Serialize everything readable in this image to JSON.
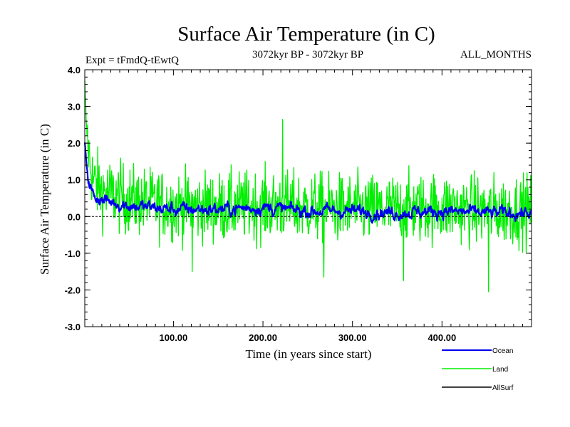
{
  "chart_data": {
    "type": "line",
    "title": "Surface Air Temperature (in C)",
    "subtitle_left": "Expt = tFmdQ-tEwtQ",
    "subtitle_center": "3072kyr BP - 3072kyr BP",
    "subtitle_right": "ALL_MONTHS",
    "xlabel": "Time (in years since start)",
    "ylabel": "Surface Air Temperature (in C)",
    "xlim": [
      1,
      500
    ],
    "ylim": [
      -3.0,
      4.0
    ],
    "xticks": [
      100,
      200,
      300,
      400
    ],
    "xtick_labels": [
      "100.00",
      "200.00",
      "300.00",
      "400.00"
    ],
    "yticks": [
      -3.0,
      -2.0,
      -1.0,
      0.0,
      1.0,
      2.0,
      3.0,
      4.0
    ],
    "ytick_labels": [
      "-3.0",
      "-2.0",
      "-1.0",
      "0.0",
      "1.0",
      "2.0",
      "3.0",
      "4.0"
    ],
    "zero_line": true,
    "series": [
      {
        "name": "Land",
        "color": "#00ee00",
        "description": "noisy annual series, spike to ~3.6 at start decaying to ~0.3 mean, range about -2.0 to 2.7",
        "anchors": [
          [
            1,
            3.6
          ],
          [
            3,
            2.4
          ],
          [
            6,
            1.6
          ],
          [
            10,
            1.0
          ],
          [
            20,
            0.7
          ],
          [
            50,
            0.45
          ],
          [
            100,
            0.3
          ],
          [
            150,
            0.25
          ],
          [
            200,
            0.3
          ],
          [
            250,
            0.25
          ],
          [
            300,
            0.2
          ],
          [
            350,
            0.2
          ],
          [
            400,
            0.25
          ],
          [
            450,
            0.15
          ],
          [
            500,
            0.2
          ]
        ],
        "noise_amplitude": 0.85,
        "notable_points": [
          [
            222,
            2.65
          ],
          [
            121,
            -1.5
          ],
          [
            268,
            -1.65
          ],
          [
            357,
            -1.75
          ],
          [
            452,
            -2.05
          ]
        ]
      },
      {
        "name": "Ocean",
        "color": "#0000ee",
        "description": "smoother annual series, spike to ~2.0 at start decaying to ~0.2 mean",
        "anchors": [
          [
            1,
            2.0
          ],
          [
            3,
            1.4
          ],
          [
            6,
            0.9
          ],
          [
            10,
            0.6
          ],
          [
            20,
            0.45
          ],
          [
            50,
            0.3
          ],
          [
            100,
            0.2
          ],
          [
            150,
            0.2
          ],
          [
            200,
            0.25
          ],
          [
            250,
            0.15
          ],
          [
            300,
            0.15
          ],
          [
            350,
            0.1
          ],
          [
            400,
            0.15
          ],
          [
            450,
            0.1
          ],
          [
            500,
            0.1
          ]
        ],
        "noise_amplitude": 0.18
      },
      {
        "name": "AllSurf",
        "color": "#000000",
        "description": "legend entry only; no visible line"
      }
    ],
    "legend": [
      "Ocean",
      "Land",
      "AllSurf"
    ],
    "legend_position": "bottom-right"
  }
}
